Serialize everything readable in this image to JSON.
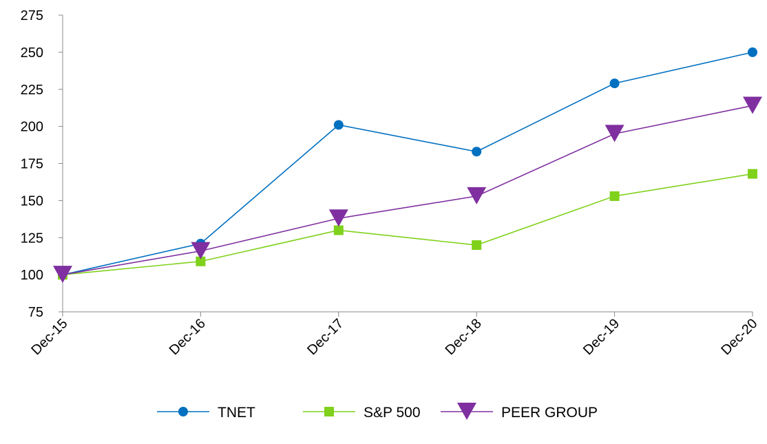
{
  "chart_data": {
    "type": "line",
    "title": "",
    "xlabel": "",
    "ylabel": "",
    "categories": [
      "Dec-15",
      "Dec-16",
      "Dec-17",
      "Dec-18",
      "Dec-19",
      "Dec-20"
    ],
    "ylim": [
      75,
      275
    ],
    "yticks": [
      75,
      100,
      125,
      150,
      175,
      200,
      225,
      250,
      275
    ],
    "grid": false,
    "legend_placement": "bottom",
    "series": [
      {
        "name": "TNET",
        "color": "#0070C0",
        "marker": "circle",
        "values": [
          100,
          121,
          201,
          183,
          229,
          250
        ]
      },
      {
        "name": "S&P 500",
        "color": "#7FD11B",
        "marker": "square",
        "values": [
          100,
          109,
          130,
          120,
          153,
          168
        ]
      },
      {
        "name": "PEER GROUP",
        "color": "#7F2F9F",
        "marker": "triangle-down",
        "values": [
          100,
          116,
          138,
          153,
          195,
          214
        ]
      }
    ]
  }
}
